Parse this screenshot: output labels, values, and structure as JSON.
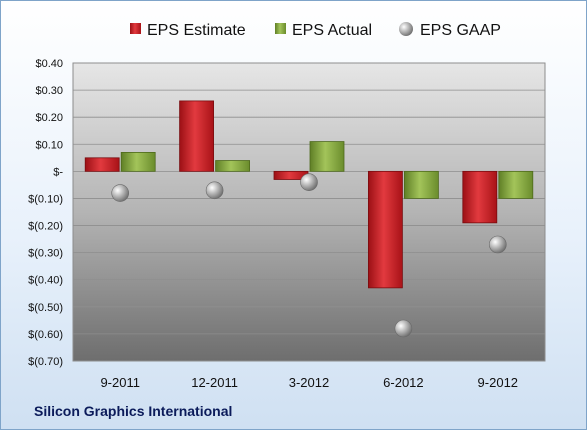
{
  "chart_data": {
    "type": "bar",
    "categories": [
      "9-2011",
      "12-2011",
      "3-2012",
      "6-2012",
      "9-2012"
    ],
    "series": [
      {
        "name": "EPS Estimate",
        "kind": "bar",
        "color": "#c0161c",
        "values": [
          0.05,
          0.26,
          -0.03,
          -0.43,
          -0.19
        ]
      },
      {
        "name": "EPS Actual",
        "kind": "bar",
        "color": "#7ea33a",
        "values": [
          0.07,
          0.04,
          0.11,
          -0.1,
          -0.1
        ]
      },
      {
        "name": "EPS GAAP",
        "kind": "marker",
        "color": "#9a9a9a",
        "values": [
          -0.08,
          -0.07,
          -0.04,
          -0.58,
          -0.27
        ]
      }
    ],
    "yticks": [
      "$0.40",
      "$0.30",
      "$0.20",
      "$0.10",
      "$-",
      "$(0.10)",
      "$(0.20)",
      "$(0.30)",
      "$(0.40)",
      "$(0.50)",
      "$(0.60)",
      "$(0.70)"
    ],
    "ylim": [
      -0.7,
      0.4
    ],
    "ystep": 0.1,
    "grid": true,
    "legend_position": "top",
    "footer": "Silicon Graphics International"
  }
}
